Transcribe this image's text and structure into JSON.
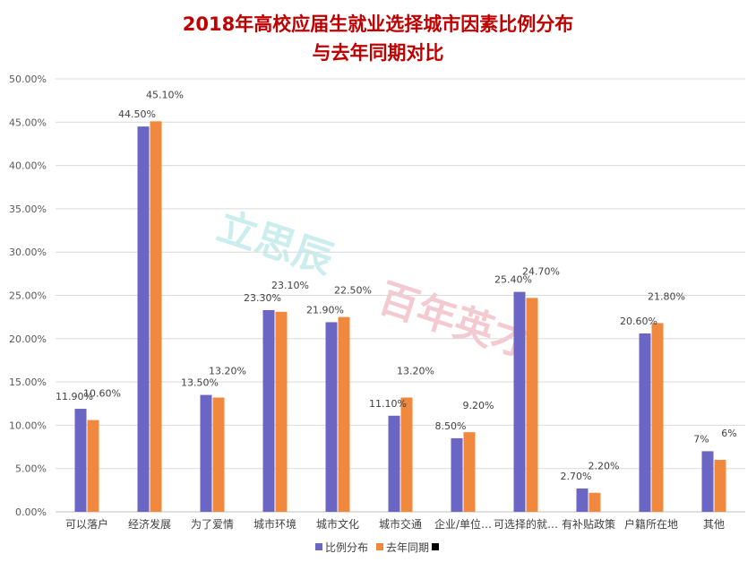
{
  "chart_data": {
    "type": "bar",
    "title_line1": "2018年高校应届生就业选择城市因素比例分布",
    "title_line2": "与去年同期对比",
    "categories": [
      "可以落户",
      "经济发展",
      "为了爱情",
      "城市环境",
      "城市文化",
      "城市交通",
      "企业/单位…",
      "可选择的就…",
      "有补贴政策",
      "户籍所在地",
      "其他"
    ],
    "series": [
      {
        "name": "比例分布",
        "color": "#6b65c4",
        "values": [
          11.9,
          44.5,
          13.5,
          23.3,
          21.9,
          11.1,
          8.5,
          25.4,
          2.7,
          20.6,
          7.0
        ],
        "labels": [
          "11.90%",
          "44.50%",
          "13.50%",
          "23.30%",
          "21.90%",
          "11.10%",
          "8.50%",
          "25.40%",
          "2.70%",
          "20.60%",
          "7%"
        ]
      },
      {
        "name": "去年同期",
        "color": "#f0883e",
        "values": [
          10.6,
          45.1,
          13.2,
          23.1,
          22.5,
          13.2,
          9.2,
          24.7,
          2.2,
          21.8,
          6.0
        ],
        "labels": [
          "10.60%",
          "45.10%",
          "13.20%",
          "23.10%",
          "22.50%",
          "13.20%",
          "9.20%",
          "24.70%",
          "2.20%",
          "21.80%",
          "6%"
        ]
      }
    ],
    "y_ticks": [
      "0.00%",
      "5.00%",
      "10.00%",
      "15.00%",
      "20.00%",
      "25.00%",
      "30.00%",
      "35.00%",
      "40.00%",
      "45.00%",
      "50.00%"
    ],
    "ylim": [
      0,
      50
    ],
    "grid": true,
    "legend_position": "bottom",
    "title_color": "#c00000",
    "watermark_1": "立思辰",
    "watermark_2": "百年英才"
  }
}
